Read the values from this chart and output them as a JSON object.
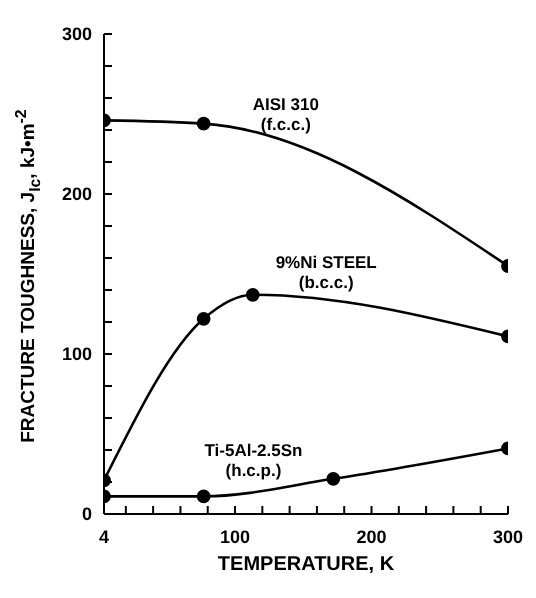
{
  "chart_data": {
    "type": "line",
    "xlabel": "TEMPERATURE, K",
    "ylabel": "FRACTURE TOUGHNESS, J$_{Ic}$, kJ•m$^{-2}$",
    "xlim": [
      4,
      300
    ],
    "xticks": [
      4,
      {
        "value": 20,
        "label": null
      },
      {
        "value": 40,
        "label": null
      },
      {
        "value": 60,
        "label": null
      },
      {
        "value": 80,
        "label": null
      },
      100,
      {
        "value": 120,
        "label": null
      },
      {
        "value": 140,
        "label": null
      },
      {
        "value": 160,
        "label": null
      },
      {
        "value": 180,
        "label": null
      },
      200,
      {
        "value": 220,
        "label": null
      },
      {
        "value": 240,
        "label": null
      },
      {
        "value": 260,
        "label": null
      },
      {
        "value": 280,
        "label": null
      },
      300
    ],
    "ylim": [
      0,
      300
    ],
    "yticks": [
      0,
      {
        "value": 20,
        "label": null
      },
      {
        "value": 40,
        "label": null
      },
      {
        "value": 60,
        "label": null
      },
      {
        "value": 80,
        "label": null
      },
      100,
      {
        "value": 120,
        "label": null
      },
      {
        "value": 140,
        "label": null
      },
      {
        "value": 160,
        "label": null
      },
      {
        "value": 180,
        "label": null
      },
      200,
      {
        "value": 220,
        "label": null
      },
      {
        "value": 240,
        "label": null
      },
      {
        "value": 260,
        "label": null
      },
      {
        "value": 280,
        "label": null
      },
      300
    ],
    "grid": false,
    "legend": false,
    "marker": "circle",
    "line_style": "solid",
    "series": [
      {
        "name": "AISI 310",
        "color": "#000000",
        "x": [
          4,
          77,
          300
        ],
        "values": [
          246,
          244,
          155
        ]
      },
      {
        "name": "9%Ni STEEL",
        "color": "#000000",
        "x": [
          4,
          77,
          113,
          300
        ],
        "values": [
          21,
          122,
          137,
          111
        ]
      },
      {
        "name": "Ti-5Al-2.5Sn",
        "color": "#000000",
        "x": [
          4,
          77,
          172,
          300
        ],
        "values": [
          11,
          11,
          22,
          41
        ]
      }
    ],
    "annotations": [
      "(f.c.c.)",
      "(b.c.c.)",
      "(h.c.p.)"
    ]
  }
}
